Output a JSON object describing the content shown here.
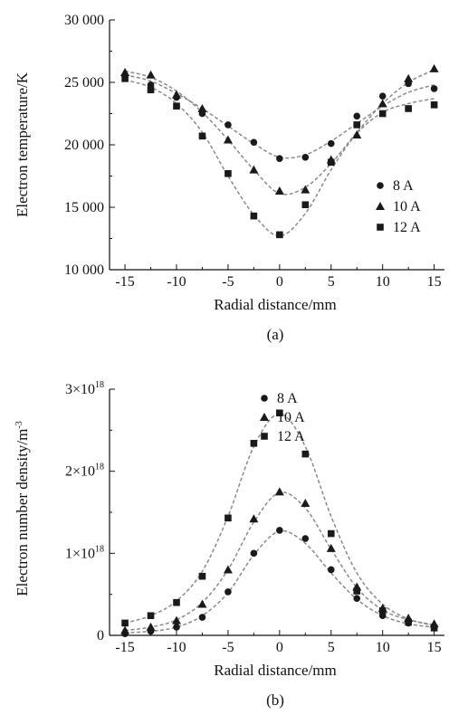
{
  "chart_data": [
    {
      "type": "scatter",
      "panel_label": "(a)",
      "xlabel": "Radial distance/mm",
      "ylabel": "Electron temperature/K",
      "xlim": [
        -16.5,
        16
      ],
      "ylim": [
        10000,
        30000
      ],
      "x_ticks": [
        -15,
        -10,
        -5,
        0,
        5,
        10,
        15
      ],
      "x_tick_labels": [
        "-15",
        "-10",
        "-5",
        "0",
        "5",
        "10",
        "15"
      ],
      "y_ticks": [
        10000,
        15000,
        20000,
        25000,
        30000
      ],
      "y_tick_labels": [
        "10 000",
        "15 000",
        "20 000",
        "25 000",
        "30 000"
      ],
      "legend_position": "right",
      "series": [
        {
          "name": "8 A",
          "marker": "circle",
          "x": [
            -15,
            -12.5,
            -10,
            -7.5,
            -5,
            -2.5,
            0,
            2.5,
            5,
            7.5,
            10,
            12.5,
            15
          ],
          "y": [
            25500,
            24800,
            23800,
            22500,
            21600,
            20200,
            18900,
            19000,
            20100,
            22300,
            23900,
            24900,
            24500
          ],
          "fit": [
            25600,
            25100,
            24100,
            22900,
            21500,
            20100,
            19000,
            19200,
            20300,
            21700,
            23100,
            24200,
            24800
          ]
        },
        {
          "name": "10 A",
          "marker": "triangle",
          "x": [
            -15,
            -12.5,
            -10,
            -7.5,
            -5,
            -2.5,
            0,
            2.5,
            5,
            7.5,
            10,
            12.5,
            15
          ],
          "y": [
            25800,
            25600,
            24000,
            22900,
            20400,
            18000,
            16300,
            16400,
            18800,
            20800,
            23300,
            25300,
            26100
          ],
          "fit": [
            25900,
            25400,
            24300,
            22600,
            20400,
            18000,
            16100,
            16600,
            18500,
            21000,
            23300,
            25000,
            26000
          ]
        },
        {
          "name": "12 A",
          "marker": "square",
          "x": [
            -15,
            -12.5,
            -10,
            -7.5,
            -5,
            -2.5,
            0,
            2.5,
            5,
            7.5,
            10,
            12.5,
            15
          ],
          "y": [
            25300,
            24400,
            23100,
            20700,
            17700,
            14300,
            12800,
            15200,
            18600,
            21600,
            22500,
            22900,
            23200
          ],
          "fit": [
            25200,
            24600,
            23300,
            21000,
            17500,
            14400,
            12700,
            14500,
            18000,
            20900,
            22600,
            23300,
            23700
          ]
        }
      ]
    },
    {
      "type": "scatter",
      "panel_label": "(b)",
      "xlabel": "Radial distance/mm",
      "ylabel": "Electron number density/m",
      "ylabel_sup": "-3",
      "xlim": [
        -16.5,
        16
      ],
      "ylim": [
        0,
        3e+18
      ],
      "x_ticks": [
        -15,
        -10,
        -5,
        0,
        5,
        10,
        15
      ],
      "x_tick_labels": [
        "-15",
        "-10",
        "-5",
        "0",
        "5",
        "10",
        "15"
      ],
      "y_ticks": [
        0,
        1e+18,
        2e+18,
        3e+18
      ],
      "y_tick_labels": [
        {
          "base": "0",
          "sup": ""
        },
        {
          "base": "1×10",
          "sup": "18"
        },
        {
          "base": "2×10",
          "sup": "18"
        },
        {
          "base": "3×10",
          "sup": "18"
        }
      ],
      "legend_position": "top-right",
      "series": [
        {
          "name": "8 A",
          "marker": "circle",
          "x": [
            -15,
            -12.5,
            -10,
            -7.5,
            -5,
            -2.5,
            0,
            2.5,
            5,
            7.5,
            10,
            12.5,
            15
          ],
          "y": [
            2e+16,
            5e+16,
            1e+17,
            2.2e+17,
            5.3e+17,
            1e+18,
            1.28e+18,
            1.18e+18,
            8e+17,
            4.5e+17,
            2.4e+17,
            1.5e+17,
            1e+17
          ],
          "fit": [
            3e+16,
            5e+16,
            1e+17,
            2.4e+17,
            5.2e+17,
            9.8e+17,
            1.27e+18,
            1.12e+18,
            7.6e+17,
            4.4e+17,
            2.4e+17,
            1.4e+17,
            1e+17
          ]
        },
        {
          "name": "10 A",
          "marker": "triangle",
          "x": [
            -15,
            -12.5,
            -10,
            -7.5,
            -5,
            -2.5,
            0,
            2.5,
            5,
            7.5,
            10,
            12.5,
            15
          ],
          "y": [
            6e+16,
            1e+17,
            1.8e+17,
            3.8e+17,
            8e+17,
            1.42e+18,
            1.75e+18,
            1.61e+18,
            1.06e+18,
            5.9e+17,
            3.3e+17,
            2.1e+17,
            1.4e+17
          ],
          "fit": [
            6e+16,
            1e+17,
            1.9e+17,
            4e+17,
            8e+17,
            1.38e+18,
            1.74e+18,
            1.55e+18,
            1.05e+18,
            5.8e+17,
            3.1e+17,
            1.9e+17,
            1.3e+17
          ]
        },
        {
          "name": "12 A",
          "marker": "square",
          "x": [
            -15,
            -12.5,
            -10,
            -7.5,
            -5,
            -2.5,
            0,
            2.5,
            5,
            7.5,
            10,
            12.5,
            15
          ],
          "y": [
            1.5e+17,
            2.4e+17,
            4e+17,
            7.2e+17,
            1.43e+18,
            2.34e+18,
            2.71e+18,
            2.21e+18,
            1.24e+18,
            5.4e+17,
            3e+17,
            1.6e+17,
            9e+16
          ],
          "fit": [
            1.5e+17,
            2.4e+17,
            4.2e+17,
            7.8e+17,
            1.45e+18,
            2.3e+18,
            2.7e+18,
            2.3e+18,
            1.45e+18,
            7.6e+17,
            3.8e+17,
            2e+17,
            1.2e+17
          ]
        }
      ]
    }
  ],
  "colors": {
    "marker": "#1a1a1a",
    "fit_line": "#8a8a8a",
    "axis": "#111111"
  }
}
